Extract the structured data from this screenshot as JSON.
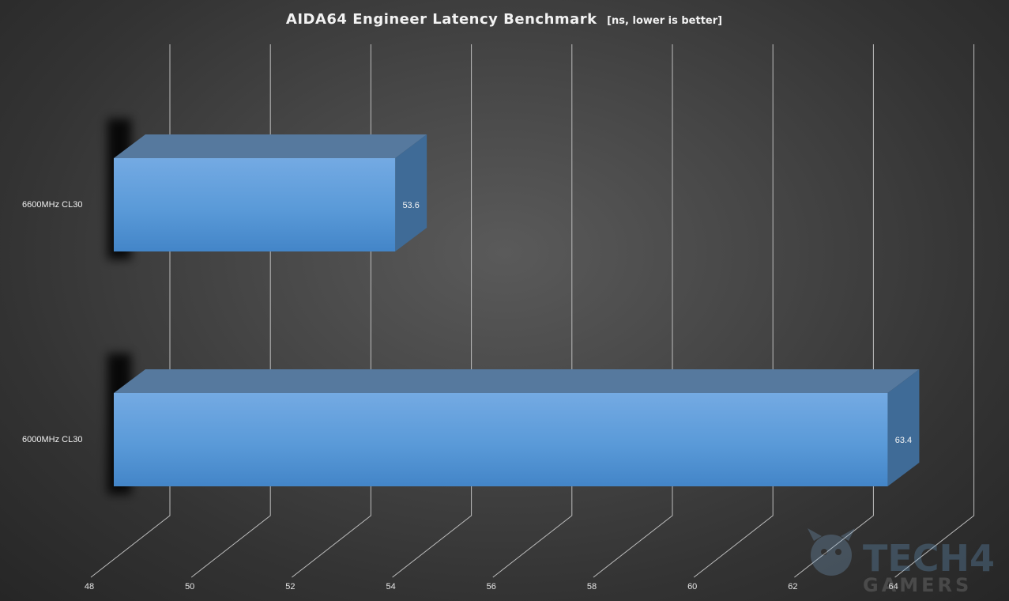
{
  "chart_data": {
    "type": "bar",
    "orientation": "horizontal",
    "style": "3d",
    "title": "AIDA64 Engineer  Latency Benchmark",
    "subtitle": "[ns, lower is better]",
    "xlabel": "",
    "ylabel": "",
    "xlim": [
      48,
      64
    ],
    "x_ticks": [
      48,
      50,
      52,
      54,
      56,
      58,
      60,
      62,
      64
    ],
    "categories": [
      "6600MHz CL30",
      "6000MHz CL30"
    ],
    "values": [
      53.6,
      63.4
    ],
    "data_labels": [
      "53.6",
      "63.4"
    ],
    "grid": true,
    "legend": "none",
    "colors": {
      "bar_front": "#5b9bd5",
      "bar_top": "#56799e",
      "bar_side": "#3f6b97"
    }
  },
  "watermark": {
    "line1": "TECH4",
    "line2": "GAMERS"
  }
}
